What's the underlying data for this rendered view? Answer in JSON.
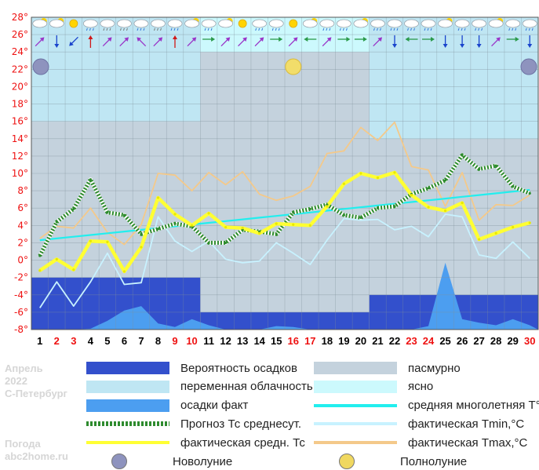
{
  "chart_data": {
    "type": "line",
    "x": [
      1,
      2,
      3,
      4,
      5,
      6,
      7,
      8,
      9,
      10,
      11,
      12,
      13,
      14,
      15,
      16,
      17,
      18,
      19,
      20,
      21,
      22,
      23,
      24,
      25,
      26,
      27,
      28,
      29,
      30
    ],
    "x_tick_labels": [
      "1",
      "2",
      "3",
      "4",
      "5",
      "6",
      "7",
      "8",
      "9",
      "10",
      "11",
      "12",
      "13",
      "14",
      "15",
      "16",
      "17",
      "18",
      "19",
      "20",
      "21",
      "22",
      "23",
      "24",
      "25",
      "26",
      "27",
      "28",
      "29",
      "30"
    ],
    "red_days": [
      2,
      3,
      9,
      10,
      16,
      17,
      23,
      24,
      30
    ],
    "y_tick_labels": [
      "28°",
      "26°",
      "24°",
      "22°",
      "20°",
      "18°",
      "16°",
      "14°",
      "12°",
      "10°",
      "8°",
      "6°",
      "4°",
      "2°",
      "0°",
      "-2°",
      "-4°",
      "-6°",
      "-8°"
    ],
    "ylim": [
      -8,
      28
    ],
    "grid": true,
    "series": [
      {
        "name": "Прогноз Тс среднесут.",
        "color": "#2e8b2e",
        "values": [
          0.5,
          4.4,
          5.9,
          9.3,
          5.5,
          5.2,
          3,
          3.6,
          4.2,
          3.9,
          2,
          2,
          3.5,
          3.3,
          3,
          5.5,
          5.9,
          6.4,
          5.2,
          4.9,
          6,
          6.2,
          7.6,
          8.3,
          9.2,
          12.1,
          10.5,
          10.9,
          8.5,
          7.7
        ]
      },
      {
        "name": "фактическая средн. Тс",
        "color": "#ffff33",
        "values": [
          -1.2,
          0.1,
          -1.1,
          2.2,
          2.1,
          -1.3,
          1.5,
          7.2,
          5.3,
          4,
          5.4,
          3.8,
          3.7,
          3.1,
          4.2,
          4.1,
          4,
          6.2,
          8.8,
          10,
          9.5,
          10.1,
          7.5,
          6.1,
          5.7,
          6.6,
          2.4,
          3.1,
          3.8,
          4.3
        ]
      },
      {
        "name": "фактическая Tmin,°C",
        "color": "#c8f2ff",
        "values": [
          -5.5,
          -2.5,
          -5.3,
          -2.5,
          0.8,
          -2.8,
          -2.6,
          5,
          2.2,
          1,
          2.2,
          0.1,
          -0.3,
          -0.1,
          2,
          0.8,
          -0.5,
          2.3,
          4.8,
          4.6,
          4.7,
          3.5,
          3.9,
          2.7,
          5.3,
          5,
          0.6,
          0.2,
          2.1,
          0.2
        ]
      },
      {
        "name": "фактическая Tmax,°C",
        "color": "#f4c98a",
        "values": [
          2.5,
          3.9,
          3.7,
          6,
          3.2,
          1.8,
          4.1,
          10,
          9.8,
          8,
          10.1,
          8.7,
          10.2,
          7.6,
          6.9,
          7.4,
          8.5,
          12.3,
          12.6,
          15.3,
          13.8,
          15.9,
          10.8,
          10.4,
          6.2,
          10.1,
          4.6,
          6.4,
          6.3,
          7.5
        ]
      },
      {
        "name": "средняя многолетняя Т°C",
        "color": "#22eeee",
        "values": [
          2.3,
          2.5,
          2.7,
          2.9,
          3.1,
          3.3,
          3.5,
          3.7,
          3.9,
          4.1,
          4.3,
          4.5,
          4.7,
          4.9,
          5.1,
          5.3,
          5.5,
          5.7,
          5.9,
          6.1,
          6.3,
          6.5,
          6.7,
          6.9,
          7.1,
          7.3,
          7.5,
          7.7,
          7.9,
          8.1
        ]
      },
      {
        "name": "осадки факт",
        "color": "#4c9ef0",
        "values": [
          -8,
          -8,
          -8,
          -7.9,
          -7,
          -5.8,
          -5.3,
          -7.3,
          -7.7,
          -6.8,
          -7.5,
          -8,
          -8,
          -8,
          -7.6,
          -7.7,
          -8,
          -8,
          -8,
          -8,
          -8,
          -8,
          -8,
          -7.6,
          -0.3,
          -6.8,
          -7.2,
          -7.5,
          -6.8,
          -7.5
        ]
      },
      {
        "name": "Вероятность осадков",
        "color": "#3350cc",
        "ranges": [
          {
            "from_day": 1,
            "to_day": 10,
            "top": -2
          },
          {
            "from_day": 11,
            "to_day": 20,
            "top": -6
          },
          {
            "from_day": 21,
            "to_day": 30,
            "top": -4
          }
        ]
      }
    ],
    "cloud_bands": [
      {
        "from_day": 1,
        "to_day": 10,
        "kind": "переменная облачность",
        "to_temp": 16
      },
      {
        "from_day": 11,
        "to_day": 20,
        "kind": "ясно",
        "to_temp": 24
      },
      {
        "from_day": 21,
        "to_day": 30,
        "kind": "переменная облачность",
        "to_temp": 14
      }
    ],
    "moons": [
      {
        "day": 1,
        "kind": "Новолуние"
      },
      {
        "day": 16,
        "kind": "Полнолуние"
      },
      {
        "day": 30,
        "kind": "Новолуние"
      }
    ],
    "weather_icons": [
      "cloud-sun",
      "cloud-sun",
      "sun",
      "cloud-rain",
      "cloud-snow",
      "cloud-snow",
      "cloud-rain",
      "cloud-snow",
      "cloud-rain",
      "cloud-sun",
      "cloud-rain",
      "cloud-sun",
      "sun",
      "cloud-rain",
      "cloud-rain",
      "sun",
      "cloud-sun",
      "cloud-rain",
      "cloud-rain",
      "cloud-sun",
      "cloud-rain",
      "cloud-rain",
      "cloud-rain",
      "cloud-rain",
      "cloud-sun",
      "cloud-rain",
      "cloud-rain",
      "cloud-sun",
      "cloud-rain",
      "cloud-rain"
    ],
    "wind_dirs": [
      "ne",
      "s",
      "sw",
      "n",
      "ne",
      "ne",
      "nw",
      "ne",
      "n",
      "ne",
      "e",
      "ne",
      "ne",
      "ne",
      "e",
      "ne",
      "w",
      "ne",
      "e",
      "e",
      "ne",
      "s",
      "w",
      "e",
      "s",
      "s",
      "s",
      "ne",
      "e",
      "s"
    ],
    "colors": {
      "background_band": "#c4d2dd",
      "partly_cloudy": "#bfe6f3",
      "clear": "#ccf9fd",
      "precip_prob": "#3350cc",
      "precip_fact": "#4c9ef0",
      "axis_labels": "#ee1111",
      "weekday_labels": "#000000",
      "weekend_labels": "#ee1111"
    }
  },
  "legend": {
    "left": [
      {
        "label": "Вероятность осадков",
        "swatch": "#3350cc",
        "type": "box"
      },
      {
        "label": "переменная облачность",
        "swatch": "#bfe6f3",
        "type": "box"
      },
      {
        "label": "осадки факт",
        "swatch": "#4c9ef0",
        "type": "box"
      },
      {
        "label": "Прогноз Тс среднесут.",
        "swatch": "#2e8b2e",
        "type": "dotted"
      },
      {
        "label": "фактическая средн. Тс",
        "swatch": "#ffff33",
        "type": "line"
      },
      {
        "label": "Новолуние",
        "swatch": "#8e93be",
        "type": "moon"
      }
    ],
    "right": [
      {
        "label": "пасмурно",
        "swatch": "#c4d2dd",
        "type": "box"
      },
      {
        "label": "ясно",
        "swatch": "#ccf9fd",
        "type": "box"
      },
      {
        "label": "средняя многолетняя T°C",
        "swatch": "#22eeee",
        "type": "line"
      },
      {
        "label": "фактическая Tmin,°C",
        "swatch": "#c8f2ff",
        "type": "line"
      },
      {
        "label": "фактическая Tmax,°C",
        "swatch": "#f4c98a",
        "type": "line"
      },
      {
        "label": "Полнолуние",
        "swatch": "#f0d860",
        "type": "moon"
      }
    ]
  },
  "side_text": {
    "month": "Апрель",
    "year": "2022",
    "city": "С-Петербург",
    "site_label": "Погода",
    "site": "abc2home.ru"
  }
}
